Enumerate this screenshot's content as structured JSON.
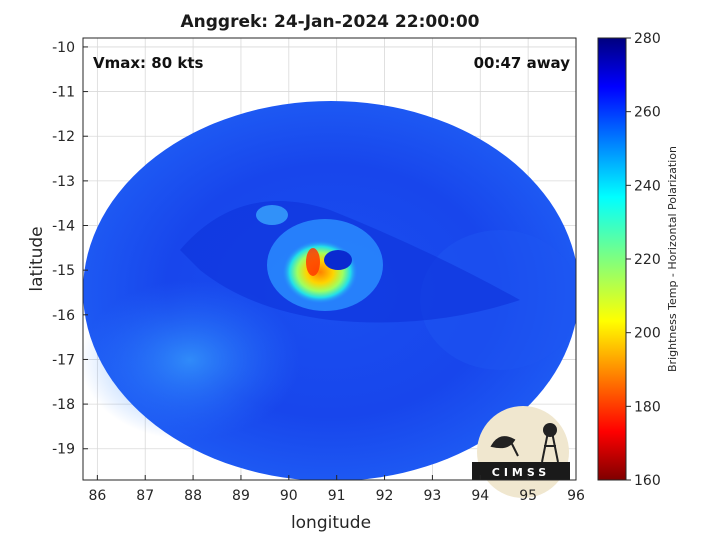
{
  "title": "Anggrek: 24-Jan-2024 22:00:00",
  "annotations": {
    "vmax": "Vmax: 80 kts",
    "time_away": "00:47 away"
  },
  "axes": {
    "xlabel": "longitude",
    "ylabel": "latitude",
    "xticks": [
      86,
      87,
      88,
      89,
      90,
      91,
      92,
      93,
      94,
      95,
      96
    ],
    "yticks": [
      -10,
      -11,
      -12,
      -13,
      -14,
      -15,
      -16,
      -17,
      -18,
      -19
    ],
    "xlim": [
      85.7,
      96.0
    ],
    "ylim": [
      -19.7,
      -9.8
    ]
  },
  "colorbar": {
    "label": "Brightness Temp - Horizontal Polarization",
    "ticks": [
      160,
      180,
      200,
      220,
      240,
      260,
      280
    ],
    "range": [
      160,
      280
    ],
    "colormap": "jet"
  },
  "field": {
    "background_temp": 262,
    "storm_center_lon": 90.6,
    "storm_center_lat": -15.0,
    "eye_min_temp": 190
  },
  "logo": {
    "text": "CIMSS"
  }
}
